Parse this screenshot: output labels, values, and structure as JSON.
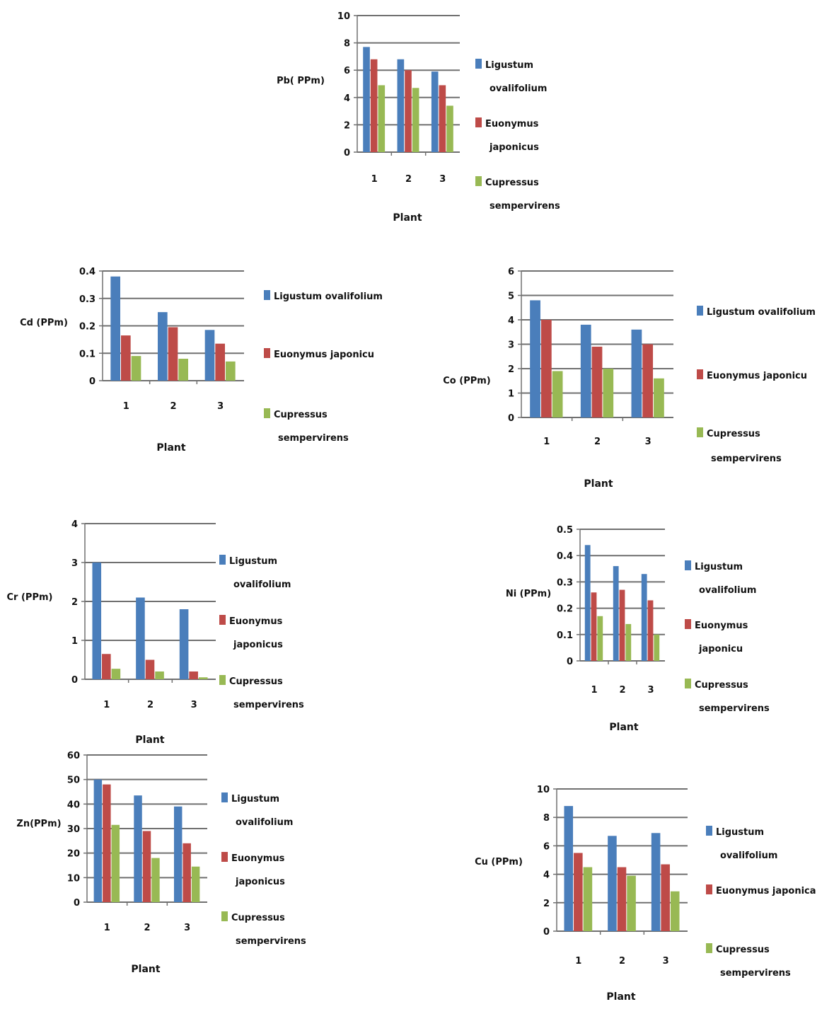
{
  "colors": {
    "s1": "#4a7ebb",
    "s2": "#be4b48",
    "s3": "#98b954",
    "grid": "#707070"
  },
  "chart_data": [
    {
      "type": "bar",
      "ylabel": "Pb( PPm)",
      "xlabel": "Plant",
      "categories": [
        "1",
        "2",
        "3"
      ],
      "ylim": [
        0,
        10
      ],
      "yticks": [
        "0",
        "2",
        "4",
        "6",
        "8",
        "10"
      ],
      "legend_position": "right",
      "series": [
        {
          "name": "Ligustum ovalifolium",
          "legend_lines": [
            "Ligustum",
            "ovalifolium"
          ],
          "values": [
            7.7,
            6.8,
            5.9
          ]
        },
        {
          "name": "Euonymus japonicus",
          "legend_lines": [
            "Euonymus",
            "japonicus"
          ],
          "values": [
            6.8,
            6.0,
            4.9
          ]
        },
        {
          "name": "Cupressus sempervirens",
          "legend_lines": [
            "Cupressus",
            "sempervirens"
          ],
          "values": [
            4.9,
            4.7,
            3.4
          ]
        }
      ]
    },
    {
      "type": "bar",
      "ylabel": "Cd (PPm)",
      "xlabel": "Plant",
      "categories": [
        "1",
        "2",
        "3"
      ],
      "ylim": [
        0,
        0.4
      ],
      "yticks": [
        "0",
        "0.1",
        "0.2",
        "0.3",
        "0.4"
      ],
      "legend_position": "right",
      "series": [
        {
          "name": "Ligustum ovalifolium",
          "legend_lines": [
            "Ligustum ovalifolium"
          ],
          "values": [
            0.38,
            0.25,
            0.185
          ]
        },
        {
          "name": "Euonymus japonicu",
          "legend_lines": [
            "Euonymus japonicu"
          ],
          "values": [
            0.165,
            0.195,
            0.135
          ]
        },
        {
          "name": "Cupressus sempervirens",
          "legend_lines": [
            "Cupressus",
            "sempervirens"
          ],
          "values": [
            0.09,
            0.08,
            0.07
          ]
        }
      ]
    },
    {
      "type": "bar",
      "ylabel": "Co (PPm)",
      "xlabel": "Plant",
      "categories": [
        "1",
        "2",
        "3"
      ],
      "ylim": [
        0,
        6
      ],
      "yticks": [
        "0",
        "1",
        "2",
        "3",
        "4",
        "5",
        "6"
      ],
      "legend_position": "right",
      "series": [
        {
          "name": "Ligustum ovalifolium",
          "legend_lines": [
            "Ligustum ovalifolium"
          ],
          "values": [
            4.8,
            3.8,
            3.6
          ]
        },
        {
          "name": "Euonymus japonicu",
          "legend_lines": [
            "Euonymus japonicu"
          ],
          "values": [
            4.0,
            2.9,
            3.0
          ]
        },
        {
          "name": "Cupressus sempervirens",
          "legend_lines": [
            "Cupressus",
            "sempervirens"
          ],
          "values": [
            1.9,
            2.0,
            1.6
          ]
        }
      ]
    },
    {
      "type": "bar",
      "ylabel": "Cr (PPm)",
      "xlabel": "Plant",
      "categories": [
        "1",
        "2",
        "3"
      ],
      "ylim": [
        0,
        4
      ],
      "yticks": [
        "0",
        "1",
        "2",
        "3",
        "4"
      ],
      "legend_position": "right",
      "series": [
        {
          "name": "Ligustum ovalifolium",
          "legend_lines": [
            "Ligustum",
            "ovalifolium"
          ],
          "values": [
            3.0,
            2.1,
            1.8
          ]
        },
        {
          "name": "Euonymus japonicus",
          "legend_lines": [
            "Euonymus",
            "japonicus"
          ],
          "values": [
            0.65,
            0.5,
            0.2
          ]
        },
        {
          "name": "Cupressus sempervirens",
          "legend_lines": [
            "Cupressus",
            "sempervirens"
          ],
          "values": [
            0.27,
            0.2,
            0.05
          ]
        }
      ]
    },
    {
      "type": "bar",
      "ylabel": "Ni (PPm)",
      "xlabel": "Plant",
      "categories": [
        "1",
        "2",
        "3"
      ],
      "ylim": [
        0,
        0.5
      ],
      "yticks": [
        "0",
        "0.1",
        "0.2",
        "0.3",
        "0.4",
        "0.5"
      ],
      "legend_position": "right",
      "series": [
        {
          "name": "Ligustum ovalifolium",
          "legend_lines": [
            "Ligustum",
            "ovalifolium"
          ],
          "values": [
            0.44,
            0.36,
            0.33
          ]
        },
        {
          "name": "Euonymus japonicu",
          "legend_lines": [
            "Euonymus",
            "japonicu"
          ],
          "values": [
            0.26,
            0.27,
            0.23
          ]
        },
        {
          "name": "Cupressus sempervirens",
          "legend_lines": [
            "Cupressus",
            "sempervirens"
          ],
          "values": [
            0.17,
            0.14,
            0.1
          ]
        }
      ]
    },
    {
      "type": "bar",
      "ylabel": "Zn(PPm)",
      "xlabel": "Plant",
      "categories": [
        "1",
        "2",
        "3"
      ],
      "ylim": [
        0,
        60
      ],
      "yticks": [
        "0",
        "10",
        "20",
        "30",
        "40",
        "50",
        "60"
      ],
      "legend_position": "right",
      "series": [
        {
          "name": "Ligustum ovalifolium",
          "legend_lines": [
            "Ligustum",
            "ovalifolium"
          ],
          "values": [
            50,
            43.5,
            39
          ]
        },
        {
          "name": "Euonymus japonicus",
          "legend_lines": [
            "Euonymus",
            "japonicus"
          ],
          "values": [
            48,
            29,
            24
          ]
        },
        {
          "name": "Cupressus sempervirens",
          "legend_lines": [
            "Cupressus",
            "sempervirens"
          ],
          "values": [
            31.5,
            18,
            14.5
          ]
        }
      ]
    },
    {
      "type": "bar",
      "ylabel": "Cu (PPm)",
      "xlabel": "Plant",
      "categories": [
        "1",
        "2",
        "3"
      ],
      "ylim": [
        0,
        10
      ],
      "yticks": [
        "0",
        "2",
        "4",
        "6",
        "8",
        "10"
      ],
      "legend_position": "right",
      "series": [
        {
          "name": "Ligustum ovalifolium",
          "legend_lines": [
            "Ligustum",
            "ovalifolium"
          ],
          "values": [
            8.8,
            6.7,
            6.9
          ]
        },
        {
          "name": "Euonymus japonica",
          "legend_lines": [
            "Euonymus japonica"
          ],
          "values": [
            5.5,
            4.5,
            4.7
          ]
        },
        {
          "name": "Cupressus sempervirens",
          "legend_lines": [
            "Cupressus",
            "sempervirens"
          ],
          "values": [
            4.5,
            3.9,
            2.8
          ]
        }
      ]
    }
  ]
}
